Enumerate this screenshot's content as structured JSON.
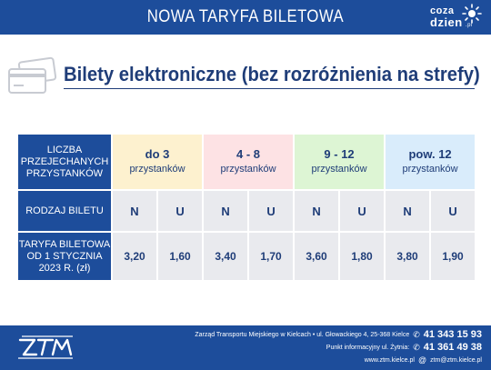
{
  "banner": {
    "title": "NOWA TARYFA BILETOWA"
  },
  "logo": {
    "line1": "coza",
    "line2": "dzien",
    "line3": ".pl"
  },
  "section": {
    "title": "Bilety elektroniczne (bez rozróżnienia na strefy)"
  },
  "table": {
    "header_left": [
      "LICZBA",
      "PRZEJECHANYCH",
      "PRZYSTANKÓW"
    ],
    "zones": [
      {
        "range": "do 3",
        "unit": "przystanków"
      },
      {
        "range": "4 - 8",
        "unit": "przystanków"
      },
      {
        "range": "9 - 12",
        "unit": "przystanków"
      },
      {
        "range": "pow. 12",
        "unit": "przystanków"
      }
    ],
    "type_label": "RODZAJ BILETU",
    "ticket_types": [
      "N",
      "U",
      "N",
      "U",
      "N",
      "U",
      "N",
      "U"
    ],
    "price_label": [
      "TARYFA BILETOWA",
      "OD 1 STYCZNIA",
      "2023 R. (zł)"
    ],
    "prices": [
      "3,20",
      "1,60",
      "3,40",
      "1,70",
      "3,60",
      "1,80",
      "3,80",
      "1,90"
    ]
  },
  "footer": {
    "address": "Zarząd Transportu Miejskiego w Kielcach  •  ul. Głowackiego 4, 25-368 Kielce",
    "phone1": "41 343 15 93",
    "info_label": "Punkt informacyjny ul. Żytnia:",
    "phone2": "41 361 49 38",
    "website": "www.ztm.kielce.pl",
    "email": "ztm@ztm.kielce.pl"
  },
  "colors": {
    "brand_blue": "#1d4d9b",
    "title_blue": "#1f3d78",
    "zone1": "#fdf1cf",
    "zone2": "#fde2e4",
    "zone3": "#ddf5d4",
    "zone4": "#d9ecfb",
    "row_gray": "#e9eaee"
  }
}
